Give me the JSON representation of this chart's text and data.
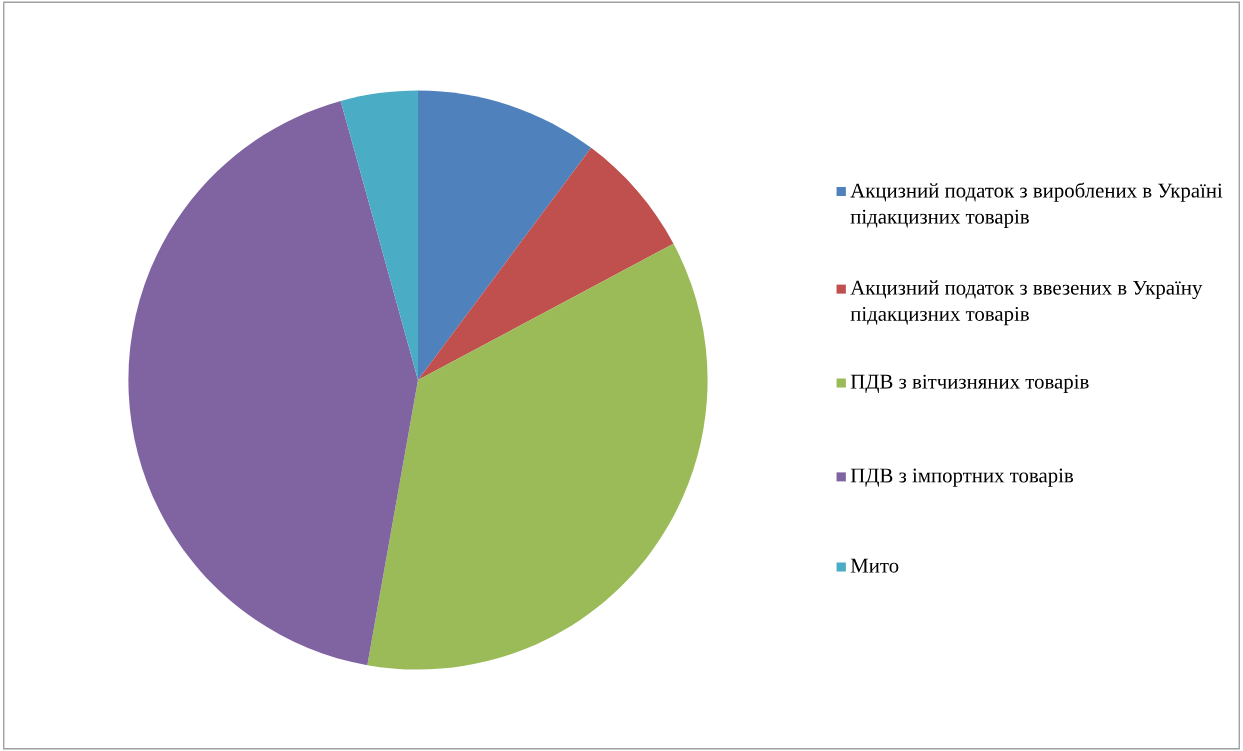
{
  "chart_data": {
    "type": "pie",
    "categories": [
      "Акцизний податок з вироблених в Україні підакцизних товарів",
      "Акцизний податок з ввезених в Україну підакцизних товарів",
      "ПДВ з вітчизняних товарів",
      "ПДВ з імпортних товарів",
      "Мито"
    ],
    "values": [
      10.2,
      7.0,
      35.6,
      42.9,
      4.3
    ],
    "colors": [
      "#4f81bd",
      "#c0504d",
      "#9bbb59",
      "#8064a2",
      "#4bacc6"
    ],
    "legend": "right"
  }
}
